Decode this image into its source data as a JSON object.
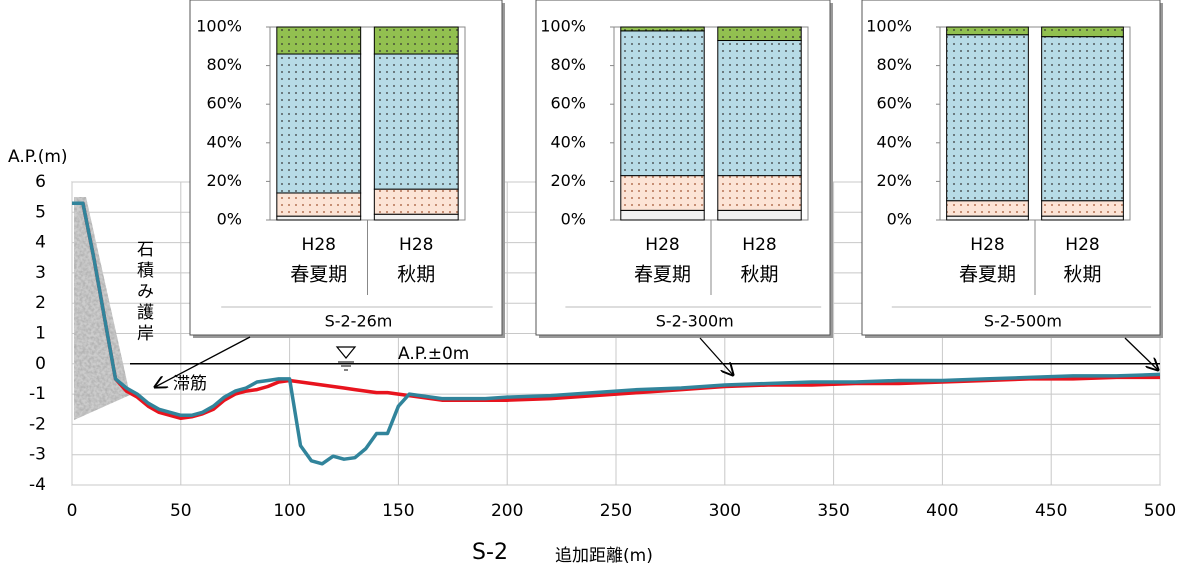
{
  "chart_data": [
    {
      "type": "line",
      "ylabel": "A.P.(m)",
      "xlabel": "追加距離(m)",
      "section": "S-2",
      "x": [
        0,
        5,
        10,
        15,
        20,
        25,
        30,
        35,
        40,
        45,
        50,
        55,
        60,
        65,
        70,
        75,
        80,
        85,
        90,
        95,
        100,
        105,
        110,
        115,
        120,
        125,
        130,
        135,
        140,
        145,
        150,
        155,
        160,
        165,
        170,
        180,
        190,
        200,
        220,
        240,
        260,
        280,
        300,
        320,
        340,
        360,
        380,
        400,
        420,
        440,
        460,
        480,
        500
      ],
      "series": [
        {
          "color": "#e8141e",
          "values": [
            5.3,
            5.3,
            3.5,
            1.5,
            -0.5,
            -0.9,
            -1.1,
            -1.4,
            -1.6,
            -1.7,
            -1.8,
            -1.75,
            -1.65,
            -1.5,
            -1.2,
            -1.0,
            -0.9,
            -0.85,
            -0.75,
            -0.6,
            -0.55,
            -0.6,
            -0.65,
            -0.7,
            -0.75,
            -0.8,
            -0.85,
            -0.9,
            -0.95,
            -0.95,
            -1.0,
            -1.05,
            -1.1,
            -1.15,
            -1.2,
            -1.2,
            -1.2,
            -1.2,
            -1.15,
            -1.05,
            -0.95,
            -0.85,
            -0.75,
            -0.7,
            -0.7,
            -0.65,
            -0.65,
            -0.6,
            -0.55,
            -0.5,
            -0.5,
            -0.45,
            -0.45
          ]
        },
        {
          "color": "#31849b",
          "values": [
            5.3,
            5.3,
            3.5,
            1.5,
            -0.5,
            -0.8,
            -1.0,
            -1.3,
            -1.5,
            -1.6,
            -1.7,
            -1.7,
            -1.6,
            -1.4,
            -1.1,
            -0.9,
            -0.8,
            -0.6,
            -0.55,
            -0.5,
            -0.5,
            -2.7,
            -3.2,
            -3.3,
            -3.05,
            -3.15,
            -3.1,
            -2.8,
            -2.3,
            -2.3,
            -1.4,
            -1.0,
            -1.05,
            -1.1,
            -1.15,
            -1.15,
            -1.15,
            -1.1,
            -1.05,
            -0.95,
            -0.85,
            -0.8,
            -0.7,
            -0.65,
            -0.6,
            -0.6,
            -0.55,
            -0.55,
            -0.5,
            -0.45,
            -0.4,
            -0.4,
            -0.35
          ]
        }
      ],
      "xlim": [
        0,
        500
      ],
      "xticks": [
        0,
        50,
        100,
        150,
        200,
        250,
        300,
        350,
        400,
        450,
        500
      ],
      "ylim": [
        -4,
        6
      ],
      "yticks": [
        -4,
        -3,
        -2,
        -1,
        0,
        1,
        2,
        3,
        4,
        5,
        6
      ],
      "grid": true,
      "reference_line": {
        "text": "A.P.±0m",
        "value": 0
      },
      "annotations": [
        "石積み護岸",
        "滞筋"
      ]
    },
    {
      "type": "bar",
      "stacked": true,
      "title": "S-2-26m",
      "categories": [
        [
          "H28",
          "春夏期"
        ],
        [
          "H28",
          "秋期"
        ]
      ],
      "series": [
        {
          "color": "#f2f2f2",
          "values": [
            2,
            3
          ]
        },
        {
          "color": "#fce4d6",
          "values": [
            12,
            13
          ]
        },
        {
          "color": "#b7dbe6",
          "values": [
            72,
            70
          ]
        },
        {
          "color": "#92c050",
          "values": [
            14,
            14
          ]
        }
      ],
      "ylim": [
        0,
        100
      ],
      "yticks": [
        {
          "value": 0,
          "label": "0%"
        },
        {
          "value": 20,
          "label": "20%"
        },
        {
          "value": 40,
          "label": "40%"
        },
        {
          "value": 60,
          "label": "60%"
        },
        {
          "value": 80,
          "label": "80%"
        },
        {
          "value": 100,
          "label": "100%"
        }
      ]
    },
    {
      "type": "bar",
      "stacked": true,
      "title": "S-2-300m",
      "categories": [
        [
          "H28",
          "春夏期"
        ],
        [
          "H28",
          "秋期"
        ]
      ],
      "series": [
        {
          "color": "#f2f2f2",
          "values": [
            5,
            5
          ]
        },
        {
          "color": "#fce4d6",
          "values": [
            18,
            18
          ]
        },
        {
          "color": "#b7dbe6",
          "values": [
            75,
            70
          ]
        },
        {
          "color": "#92c050",
          "values": [
            2,
            7
          ]
        }
      ],
      "ylim": [
        0,
        100
      ],
      "yticks": [
        {
          "value": 0,
          "label": "0%"
        },
        {
          "value": 20,
          "label": "20%"
        },
        {
          "value": 40,
          "label": "40%"
        },
        {
          "value": 60,
          "label": "60%"
        },
        {
          "value": 80,
          "label": "80%"
        },
        {
          "value": 100,
          "label": "100%"
        }
      ]
    },
    {
      "type": "bar",
      "stacked": true,
      "title": "S-2-500m",
      "categories": [
        [
          "H28",
          "春夏期"
        ],
        [
          "H28",
          "秋期"
        ]
      ],
      "series": [
        {
          "color": "#f2f2f2",
          "values": [
            2,
            2
          ]
        },
        {
          "color": "#fce4d6",
          "values": [
            8,
            8
          ]
        },
        {
          "color": "#b7dbe6",
          "values": [
            86,
            85
          ]
        },
        {
          "color": "#92c050",
          "values": [
            4,
            5
          ]
        }
      ],
      "ylim": [
        0,
        100
      ],
      "yticks": [
        {
          "value": 0,
          "label": "0%"
        },
        {
          "value": 20,
          "label": "20%"
        },
        {
          "value": 40,
          "label": "40%"
        },
        {
          "value": 60,
          "label": "60%"
        },
        {
          "value": 80,
          "label": "80%"
        },
        {
          "value": 100,
          "label": "100%"
        }
      ]
    }
  ]
}
